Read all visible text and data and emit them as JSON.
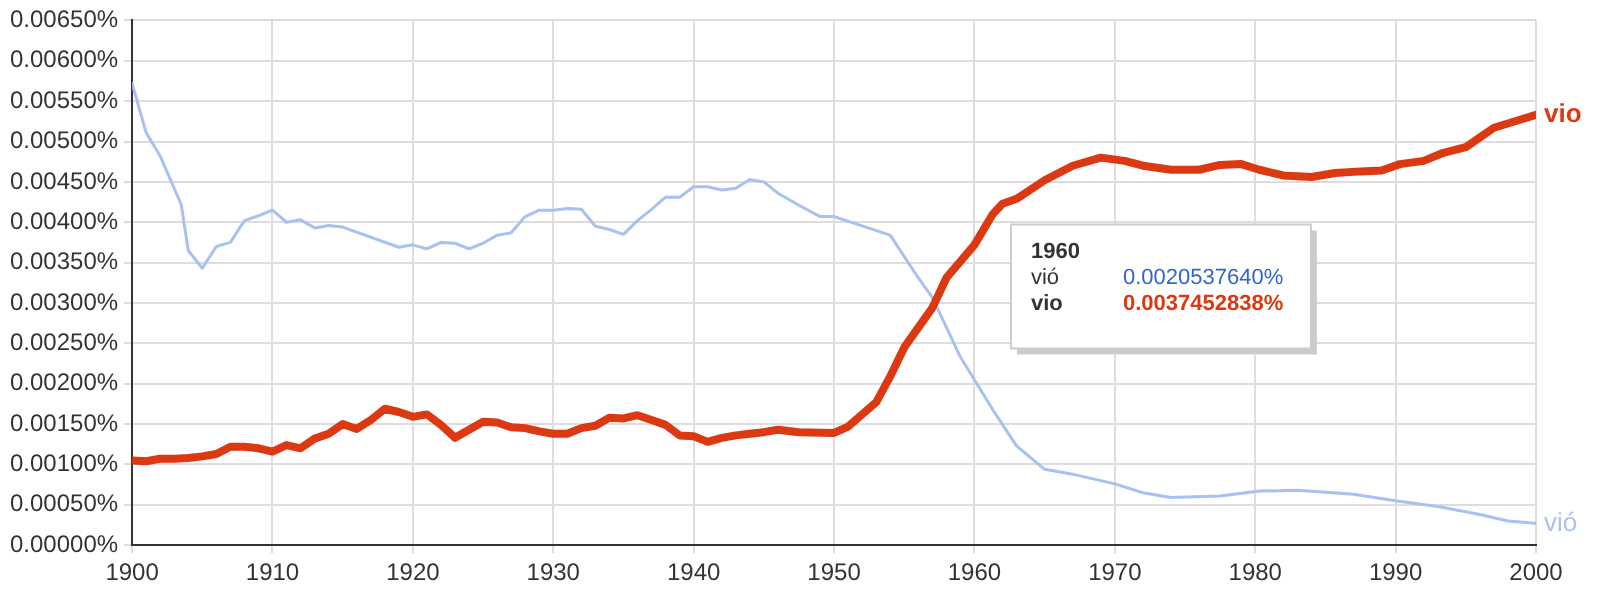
{
  "chart_data": {
    "type": "line",
    "xlim": [
      1900,
      2000
    ],
    "xticks": [
      1900,
      1910,
      1920,
      1930,
      1940,
      1950,
      1960,
      1970,
      1980,
      1990,
      2000
    ],
    "ylim": [
      0,
      0.0065
    ],
    "yticks": [
      {
        "value": 0,
        "label": "0.00000%"
      },
      {
        "value": 0.0005,
        "label": "0.00050%"
      },
      {
        "value": 0.001,
        "label": "0.00100%"
      },
      {
        "value": 0.0015,
        "label": "0.00150%"
      },
      {
        "value": 0.002,
        "label": "0.00200%"
      },
      {
        "value": 0.0025,
        "label": "0.00250%"
      },
      {
        "value": 0.003,
        "label": "0.00300%"
      },
      {
        "value": 0.0035,
        "label": "0.00350%"
      },
      {
        "value": 0.004,
        "label": "0.00400%"
      },
      {
        "value": 0.0045,
        "label": "0.00450%"
      },
      {
        "value": 0.005,
        "label": "0.00500%"
      },
      {
        "value": 0.0055,
        "label": "0.00550%"
      },
      {
        "value": 0.006,
        "label": "0.00600%"
      },
      {
        "value": 0.0065,
        "label": "0.00650%"
      }
    ],
    "grid": true,
    "legend": false,
    "marker": "none",
    "line_style": "solid",
    "annotations": [
      "1960",
      "vió",
      "0.0020537640%",
      "vio",
      "0.0037452838%"
    ],
    "series": [
      {
        "name": "vió",
        "color": "#a8c1f0",
        "x": [
          1900,
          1901,
          1902,
          1903.5,
          1904,
          1905,
          1906,
          1907,
          1908,
          1909,
          1910,
          1911,
          1912,
          1913,
          1914,
          1915,
          1919,
          1920,
          1921,
          1922,
          1923,
          1924,
          1925,
          1926,
          1927,
          1928,
          1929,
          1930,
          1931,
          1932,
          1933,
          1934,
          1935,
          1936,
          1937,
          1938,
          1939,
          1940,
          1941,
          1942,
          1943,
          1944,
          1945,
          1946,
          1947.5,
          1949,
          1950,
          1954,
          1956,
          1957,
          1959,
          1960,
          1961.3,
          1963,
          1965,
          1967,
          1970,
          1972,
          1974,
          1977.5,
          1980.3,
          1983,
          1987,
          1990,
          1993,
          1996,
          1998,
          2000
        ],
        "values": [
          0.00572,
          0.00511,
          0.00482,
          0.00422,
          0.00365,
          0.00343,
          0.0037,
          0.00375,
          0.00402,
          0.00408,
          0.00415,
          0.004,
          0.00403,
          0.00393,
          0.00396,
          0.00394,
          0.00369,
          0.00372,
          0.00367,
          0.00375,
          0.00374,
          0.00367,
          0.00374,
          0.00384,
          0.00387,
          0.00407,
          0.00415,
          0.00415,
          0.00417,
          0.00416,
          0.00395,
          0.00391,
          0.00385,
          0.00402,
          0.00416,
          0.00431,
          0.00431,
          0.00444,
          0.00444,
          0.0044,
          0.00442,
          0.00453,
          0.0045,
          0.00436,
          0.00421,
          0.00407,
          0.00407,
          0.00384,
          0.00331,
          0.00307,
          0.00233,
          0.00205,
          0.00168,
          0.00123,
          0.00094,
          0.00088,
          0.00076,
          0.00065,
          0.00059,
          0.00061,
          0.00067,
          0.00068,
          0.00063,
          0.00055,
          0.00048,
          0.00038,
          0.0003,
          0.00027
        ]
      },
      {
        "name": "vio",
        "color": "#dc3912",
        "x": [
          1900,
          1901,
          1902,
          1903,
          1904,
          1905,
          1906,
          1907,
          1908,
          1909,
          1910,
          1911,
          1912,
          1913,
          1914,
          1915,
          1916,
          1917,
          1918,
          1919,
          1920,
          1921,
          1922,
          1923,
          1924,
          1925,
          1926,
          1927,
          1928,
          1929,
          1930,
          1931,
          1932,
          1933,
          1934,
          1935,
          1936,
          1937,
          1938,
          1939,
          1940,
          1941,
          1942,
          1943,
          1944,
          1945,
          1946,
          1947.5,
          1950,
          1951,
          1953,
          1954,
          1955,
          1957,
          1958,
          1960,
          1961.3,
          1962,
          1963,
          1965,
          1967,
          1969,
          1970.7,
          1972,
          1974,
          1976,
          1977.5,
          1979,
          1980.3,
          1982,
          1984,
          1985.7,
          1987.5,
          1989,
          1990.3,
          1992,
          1993.4,
          1995,
          1997,
          2000
        ],
        "values": [
          0.00105,
          0.00104,
          0.00107,
          0.00107,
          0.00108,
          0.0011,
          0.00113,
          0.00122,
          0.00122,
          0.0012,
          0.00116,
          0.00124,
          0.0012,
          0.00132,
          0.00138,
          0.0015,
          0.00144,
          0.00155,
          0.00169,
          0.00165,
          0.00159,
          0.00162,
          0.00149,
          0.00133,
          0.00143,
          0.00153,
          0.00152,
          0.00146,
          0.00145,
          0.00141,
          0.00138,
          0.00138,
          0.00145,
          0.00148,
          0.00158,
          0.00157,
          0.00161,
          0.00155,
          0.00149,
          0.00136,
          0.00135,
          0.00128,
          0.00133,
          0.00136,
          0.00138,
          0.0014,
          0.00143,
          0.0014,
          0.00139,
          0.00147,
          0.00177,
          0.00209,
          0.00245,
          0.00294,
          0.00331,
          0.00372,
          0.0041,
          0.00423,
          0.00429,
          0.00452,
          0.0047,
          0.0048,
          0.00476,
          0.0047,
          0.00465,
          0.00465,
          0.00471,
          0.00472,
          0.00465,
          0.00458,
          0.00456,
          0.00461,
          0.00463,
          0.00464,
          0.00472,
          0.00476,
          0.00486,
          0.00493,
          0.00517,
          0.00533
        ]
      }
    ]
  }
}
